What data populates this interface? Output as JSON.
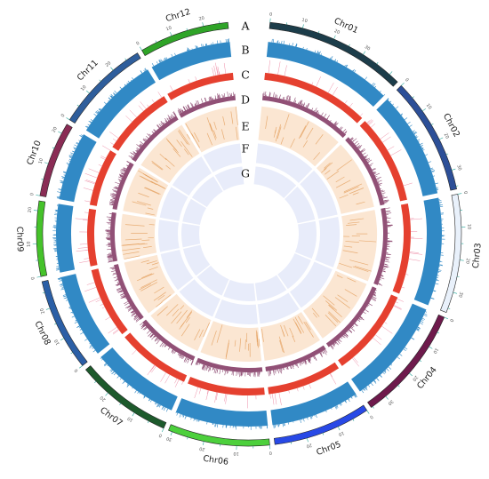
{
  "track_letters": [
    "A",
    "B",
    "C",
    "D",
    "E",
    "F",
    "G"
  ],
  "tick_labels": [
    "0",
    "10",
    "20",
    "30"
  ],
  "chromosomes": [
    {
      "name": "Chr01",
      "length_mb": 43.3,
      "color": "#1c3d4a"
    },
    {
      "name": "Chr02",
      "length_mb": 35.9,
      "color": "#2c4f98"
    },
    {
      "name": "Chr03",
      "length_mb": 36.4,
      "color": "#e9f1fb"
    },
    {
      "name": "Chr04",
      "length_mb": 35.5,
      "color": "#6e1a4c"
    },
    {
      "name": "Chr05",
      "length_mb": 29.9,
      "color": "#2849e6"
    },
    {
      "name": "Chr06",
      "length_mb": 31.2,
      "color": "#4cd03c"
    },
    {
      "name": "Chr07",
      "length_mb": 29.7,
      "color": "#1d5a2c"
    },
    {
      "name": "Chr08",
      "length_mb": 28.4,
      "color": "#2b5fa6"
    },
    {
      "name": "Chr09",
      "length_mb": 23.0,
      "color": "#45c22a"
    },
    {
      "name": "Chr10",
      "length_mb": 23.2,
      "color": "#8a2c55"
    },
    {
      "name": "Chr11",
      "length_mb": 29.0,
      "color": "#2f5e9c"
    },
    {
      "name": "Chr12",
      "length_mb": 27.5,
      "color": "#2fa428"
    }
  ],
  "track_colors": {
    "B": "#3189c5",
    "C": "#e5402f",
    "D": "#915076",
    "E_bg": "#fbe6d2",
    "E_mark": "#e19a54",
    "F_bg": "#e8ecfa",
    "G_bg": "#e8ecfa",
    "tick": "#26a69a"
  }
}
